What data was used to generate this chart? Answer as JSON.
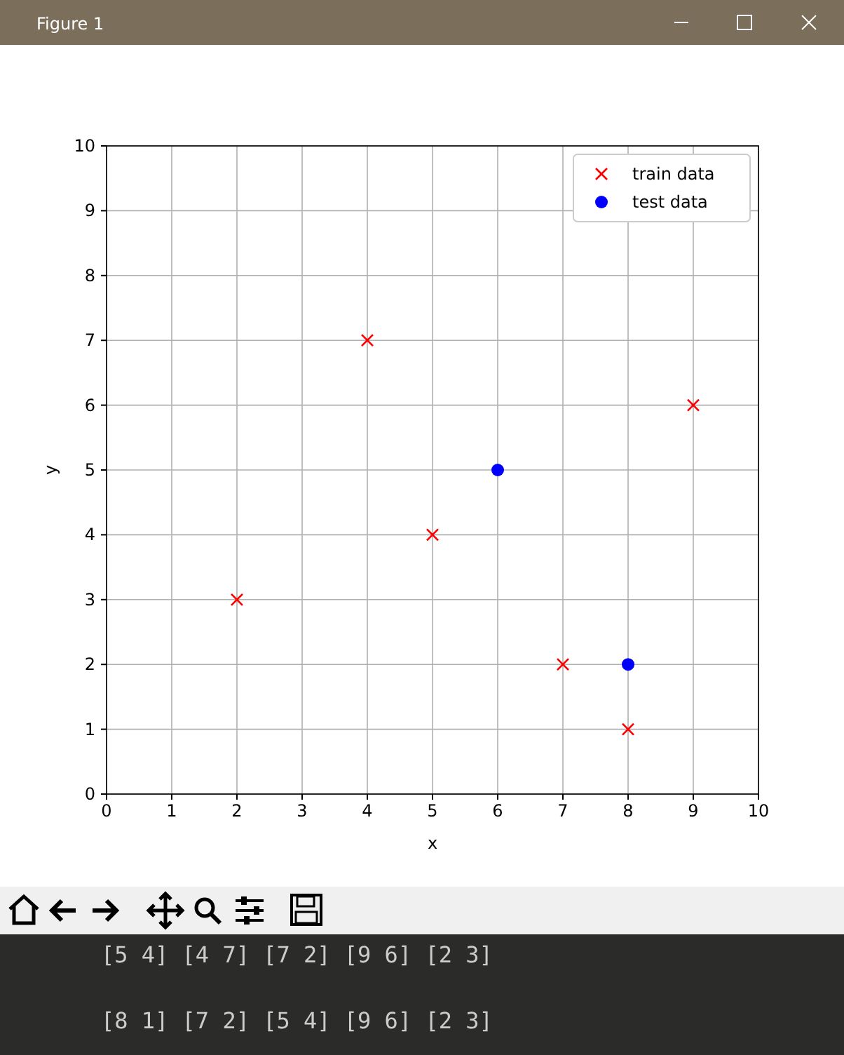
{
  "chart_data": {
    "type": "scatter",
    "xlabel": "x",
    "ylabel": "y",
    "annotations": [
      "Figure 1",
      "[5 4] [4 7] [7 2] [9 6] [2 3]",
      "[8 1] [7 2] [5 4] [9 6] [2 3]"
    ],
    "series": [
      {
        "name": "train data",
        "color": "#ff0000",
        "marker": "cross",
        "x": [
          5,
          4,
          7,
          9,
          2,
          8
        ],
        "values": [
          4,
          7,
          2,
          6,
          3,
          1
        ]
      },
      {
        "name": "test data",
        "color": "#0000ff",
        "marker": "circle",
        "x": [
          6,
          8
        ],
        "values": [
          5,
          2
        ]
      }
    ],
    "xlim": [
      0,
      10
    ],
    "xticks": [
      0,
      1,
      2,
      3,
      4,
      5,
      6,
      7,
      8,
      9,
      10
    ],
    "ylim": [
      0,
      10
    ],
    "yticks": [
      0,
      1,
      2,
      3,
      4,
      5,
      6,
      7,
      8,
      9,
      10
    ],
    "grid": true,
    "legend": "top right"
  }
}
